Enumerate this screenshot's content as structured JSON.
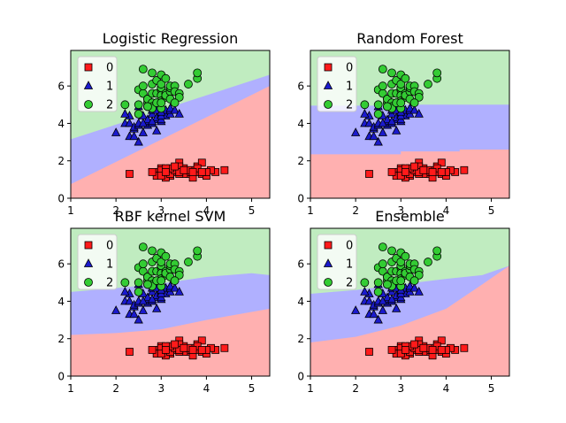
{
  "colors": {
    "class_0": "#ff1a1a",
    "class_1": "#1a1acc",
    "class_2": "#33cc33",
    "region_0": "#ffb0b0",
    "region_1": "#b0b0ff",
    "region_2": "#c0ecc0"
  },
  "chart_data": [
    {
      "type": "scatter",
      "title": "Logistic Regression",
      "xlim": [
        1.0,
        5.4
      ],
      "ylim": [
        0.0,
        7.9
      ],
      "xticks": [
        "1",
        "2",
        "3",
        "4",
        "5"
      ],
      "yticks": [
        "0",
        "2",
        "4",
        "6"
      ],
      "legend": {
        "placement": "top-left",
        "entries": [
          "0",
          "1",
          "2"
        ]
      },
      "decision_regions": {
        "boundary_0_1": [
          [
            1.0,
            0.75
          ],
          [
            5.4,
            6.0
          ]
        ],
        "boundary_1_2": [
          [
            1.0,
            3.15
          ],
          [
            5.4,
            6.6
          ]
        ]
      }
    },
    {
      "type": "scatter",
      "title": "Random Forest",
      "xlim": [
        1.0,
        5.4
      ],
      "ylim": [
        0.0,
        7.9
      ],
      "xticks": [
        "1",
        "2",
        "3",
        "4",
        "5"
      ],
      "yticks": [
        "0",
        "2",
        "4",
        "6"
      ],
      "legend": {
        "placement": "top-left",
        "entries": [
          "0",
          "1",
          "2"
        ]
      },
      "decision_regions": {
        "boundary_0_1": [
          [
            1.0,
            2.35
          ],
          [
            3.0,
            2.35
          ],
          [
            3.0,
            2.5
          ],
          [
            4.3,
            2.5
          ],
          [
            4.3,
            2.6
          ],
          [
            5.4,
            2.6
          ]
        ],
        "boundary_1_2": [
          [
            1.0,
            4.95
          ],
          [
            2.8,
            4.95
          ],
          [
            2.8,
            5.0
          ],
          [
            5.4,
            5.0
          ]
        ]
      }
    },
    {
      "type": "scatter",
      "title": "RBF kernel SVM",
      "xlim": [
        1.0,
        5.4
      ],
      "ylim": [
        0.0,
        7.9
      ],
      "xticks": [
        "1",
        "2",
        "3",
        "4",
        "5"
      ],
      "yticks": [
        "0",
        "2",
        "4",
        "6"
      ],
      "legend": {
        "placement": "top-left",
        "entries": [
          "0",
          "1",
          "2"
        ]
      },
      "decision_regions": {
        "boundary_0_1": [
          [
            1.0,
            2.2
          ],
          [
            2.0,
            2.3
          ],
          [
            3.0,
            2.5
          ],
          [
            4.0,
            3.0
          ],
          [
            5.4,
            3.6
          ]
        ],
        "boundary_1_2": [
          [
            1.0,
            4.5
          ],
          [
            2.0,
            4.7
          ],
          [
            3.0,
            4.95
          ],
          [
            4.0,
            5.3
          ],
          [
            5.0,
            5.5
          ],
          [
            5.4,
            5.4
          ]
        ]
      }
    },
    {
      "type": "scatter",
      "title": "Ensemble",
      "xlim": [
        1.0,
        5.4
      ],
      "ylim": [
        0.0,
        7.9
      ],
      "xticks": [
        "1",
        "2",
        "3",
        "4",
        "5"
      ],
      "yticks": [
        "0",
        "2",
        "4",
        "6"
      ],
      "legend": {
        "placement": "top-left",
        "entries": [
          "0",
          "1",
          "2"
        ]
      },
      "decision_regions": {
        "boundary_0_1": [
          [
            1.0,
            1.8
          ],
          [
            2.0,
            2.1
          ],
          [
            3.0,
            2.7
          ],
          [
            4.0,
            3.6
          ],
          [
            4.8,
            4.9
          ],
          [
            5.4,
            5.9
          ]
        ],
        "boundary_1_2": [
          [
            1.0,
            4.4
          ],
          [
            2.0,
            4.6
          ],
          [
            3.0,
            4.9
          ],
          [
            4.0,
            5.2
          ],
          [
            4.8,
            5.4
          ],
          [
            5.4,
            5.9
          ]
        ]
      }
    }
  ],
  "points": {
    "class_0": [
      [
        2.3,
        1.3
      ],
      [
        2.9,
        1.4
      ],
      [
        3.0,
        1.4
      ],
      [
        3.1,
        1.5
      ],
      [
        3.2,
        1.4
      ],
      [
        3.3,
        1.6
      ],
      [
        3.4,
        1.5
      ],
      [
        3.5,
        1.4
      ],
      [
        3.6,
        1.3
      ],
      [
        3.7,
        1.5
      ],
      [
        3.8,
        1.4
      ],
      [
        3.9,
        1.3
      ],
      [
        4.0,
        1.2
      ],
      [
        4.2,
        1.4
      ],
      [
        4.4,
        1.5
      ],
      [
        3.0,
        1.6
      ],
      [
        3.1,
        1.3
      ],
      [
        3.2,
        1.2
      ],
      [
        3.4,
        1.9
      ],
      [
        3.5,
        1.6
      ],
      [
        3.8,
        1.7
      ],
      [
        3.9,
        1.9
      ],
      [
        3.1,
        1.1
      ],
      [
        3.3,
        1.4
      ],
      [
        3.6,
        1.4
      ],
      [
        3.4,
        1.7
      ],
      [
        2.9,
        1.2
      ],
      [
        3.0,
        1.3
      ],
      [
        3.7,
        1.1
      ],
      [
        3.5,
        1.3
      ],
      [
        3.4,
        1.3
      ],
      [
        4.1,
        1.5
      ],
      [
        3.2,
        1.3
      ],
      [
        3.3,
        1.5
      ],
      [
        3.0,
        1.5
      ],
      [
        3.8,
        1.6
      ],
      [
        3.2,
        1.6
      ],
      [
        3.1,
        1.6
      ],
      [
        3.4,
        1.4
      ],
      [
        4.0,
        1.4
      ],
      [
        3.6,
        1.5
      ],
      [
        3.9,
        1.4
      ],
      [
        3.5,
        1.5
      ],
      [
        2.8,
        1.4
      ],
      [
        3.7,
        1.4
      ],
      [
        3.0,
        1.2
      ],
      [
        3.3,
        1.7
      ],
      [
        3.1,
        1.4
      ]
    ],
    "class_1": [
      [
        2.0,
        3.5
      ],
      [
        2.2,
        4.0
      ],
      [
        2.3,
        3.3
      ],
      [
        2.3,
        4.0
      ],
      [
        2.3,
        4.4
      ],
      [
        2.4,
        3.7
      ],
      [
        2.4,
        3.8
      ],
      [
        2.5,
        3.0
      ],
      [
        2.5,
        3.9
      ],
      [
        2.5,
        4.0
      ],
      [
        2.6,
        4.4
      ],
      [
        2.6,
        3.5
      ],
      [
        2.7,
        3.9
      ],
      [
        2.7,
        4.1
      ],
      [
        2.7,
        4.2
      ],
      [
        2.8,
        4.0
      ],
      [
        2.8,
        4.5
      ],
      [
        2.8,
        4.7
      ],
      [
        2.9,
        3.6
      ],
      [
        2.9,
        4.2
      ],
      [
        2.9,
        4.3
      ],
      [
        2.9,
        4.7
      ],
      [
        3.0,
        4.1
      ],
      [
        3.0,
        4.2
      ],
      [
        3.0,
        4.5
      ],
      [
        3.0,
        5.0
      ],
      [
        3.1,
        4.4
      ],
      [
        3.1,
        4.7
      ],
      [
        3.2,
        4.5
      ],
      [
        3.2,
        4.7
      ],
      [
        3.2,
        4.8
      ],
      [
        3.3,
        4.7
      ],
      [
        3.4,
        4.5
      ],
      [
        2.4,
        3.3
      ],
      [
        2.6,
        4.0
      ],
      [
        3.0,
        4.4
      ],
      [
        2.8,
        4.1
      ],
      [
        2.5,
        4.9
      ],
      [
        2.2,
        4.5
      ],
      [
        3.0,
        4.6
      ]
    ],
    "class_2": [
      [
        2.2,
        5.0
      ],
      [
        2.5,
        5.8
      ],
      [
        2.5,
        4.5
      ],
      [
        2.5,
        5.0
      ],
      [
        2.6,
        5.6
      ],
      [
        2.6,
        6.9
      ],
      [
        2.7,
        5.1
      ],
      [
        2.7,
        4.9
      ],
      [
        2.7,
        5.3
      ],
      [
        2.7,
        5.3
      ],
      [
        2.8,
        6.7
      ],
      [
        2.8,
        5.6
      ],
      [
        2.8,
        5.1
      ],
      [
        2.8,
        4.9
      ],
      [
        2.8,
        4.8
      ],
      [
        2.8,
        6.1
      ],
      [
        2.9,
        5.6
      ],
      [
        2.9,
        6.3
      ],
      [
        3.0,
        5.8
      ],
      [
        3.0,
        5.5
      ],
      [
        3.0,
        5.2
      ],
      [
        3.0,
        4.8
      ],
      [
        3.0,
        6.6
      ],
      [
        3.0,
        5.9
      ],
      [
        3.0,
        6.1
      ],
      [
        3.1,
        5.4
      ],
      [
        3.1,
        5.6
      ],
      [
        3.1,
        5.5
      ],
      [
        3.2,
        5.7
      ],
      [
        3.2,
        5.9
      ],
      [
        3.2,
        6.0
      ],
      [
        3.2,
        5.3
      ],
      [
        3.3,
        6.0
      ],
      [
        3.3,
        5.7
      ],
      [
        3.4,
        5.6
      ],
      [
        3.4,
        5.4
      ],
      [
        3.6,
        6.1
      ],
      [
        3.8,
        6.4
      ],
      [
        3.8,
        6.7
      ],
      [
        2.9,
        5.1
      ],
      [
        3.1,
        6.4
      ],
      [
        2.6,
        6.0
      ],
      [
        3.0,
        5.1
      ],
      [
        3.3,
        5.1
      ],
      [
        2.7,
        4.9
      ]
    ]
  }
}
